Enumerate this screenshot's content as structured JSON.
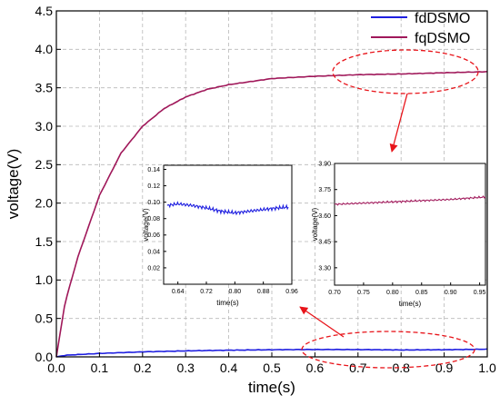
{
  "chart_data": [
    {
      "type": "line",
      "name": "main",
      "xlabel": "time(s)",
      "ylabel": "voltage(V)",
      "xlim": [
        0,
        1.0
      ],
      "ylim": [
        0,
        4.5
      ],
      "xticks": [
        "0.0",
        "0.1",
        "0.2",
        "0.3",
        "0.4",
        "0.5",
        "0.6",
        "0.7",
        "0.8",
        "0.9",
        "1.0"
      ],
      "yticks": [
        "0.0",
        "0.5",
        "1.0",
        "1.5",
        "2.0",
        "2.5",
        "3.0",
        "3.5",
        "4.0",
        "4.5"
      ],
      "grid": true,
      "legend": "top-right",
      "series": [
        {
          "name": "fdDSMO",
          "color": "#1f1fe0",
          "x": [
            0,
            0.02,
            0.05,
            0.1,
            0.15,
            0.2,
            0.3,
            0.4,
            0.5,
            0.6,
            0.7,
            0.8,
            0.9,
            1.0
          ],
          "y": [
            0.0,
            0.02,
            0.03,
            0.045,
            0.055,
            0.065,
            0.078,
            0.087,
            0.093,
            0.096,
            0.095,
            0.09,
            0.093,
            0.1
          ]
        },
        {
          "name": "fqDSMO",
          "color": "#a0185a",
          "x": [
            0,
            0.02,
            0.05,
            0.1,
            0.15,
            0.2,
            0.25,
            0.3,
            0.35,
            0.4,
            0.5,
            0.6,
            0.7,
            0.8,
            0.9,
            1.0
          ],
          "y": [
            0.0,
            0.7,
            1.3,
            2.1,
            2.65,
            3.0,
            3.23,
            3.38,
            3.48,
            3.54,
            3.62,
            3.65,
            3.67,
            3.68,
            3.695,
            3.71
          ]
        }
      ]
    },
    {
      "type": "line",
      "name": "inset-fd",
      "xlabel": "time(s)",
      "ylabel": "voltage(V)",
      "xlim": [
        0.6,
        0.96
      ],
      "ylim": [
        0.0,
        0.145
      ],
      "xticks": [
        "0.64",
        "0.72",
        "0.80",
        "0.88",
        "0.96"
      ],
      "yticks": [
        "0.02",
        "0.04",
        "0.06",
        "0.08",
        "0.10",
        "0.12",
        "0.14"
      ],
      "series": [
        {
          "name": "fdDSMO",
          "color": "#1f1fe0",
          "x": [
            0.61,
            0.64,
            0.68,
            0.72,
            0.76,
            0.8,
            0.84,
            0.88,
            0.92,
            0.95
          ],
          "y": [
            0.096,
            0.098,
            0.096,
            0.093,
            0.089,
            0.087,
            0.089,
            0.091,
            0.093,
            0.094
          ]
        }
      ]
    },
    {
      "type": "line",
      "name": "inset-fq",
      "xlabel": "time(s)",
      "ylabel": "voltage(V)",
      "xlim": [
        0.7,
        0.96
      ],
      "ylim": [
        3.2,
        3.9
      ],
      "xticks": [
        "0.70",
        "0.75",
        "0.80",
        "0.85",
        "0.90",
        "0.95"
      ],
      "yticks": [
        "3.30",
        "3.45",
        "3.60",
        "3.75",
        "3.90"
      ],
      "series": [
        {
          "name": "fqDSMO",
          "color": "#a0185a",
          "x": [
            0.7,
            0.75,
            0.8,
            0.85,
            0.9,
            0.95,
            0.96
          ],
          "y": [
            3.665,
            3.672,
            3.679,
            3.686,
            3.693,
            3.705,
            3.707
          ]
        }
      ]
    }
  ]
}
